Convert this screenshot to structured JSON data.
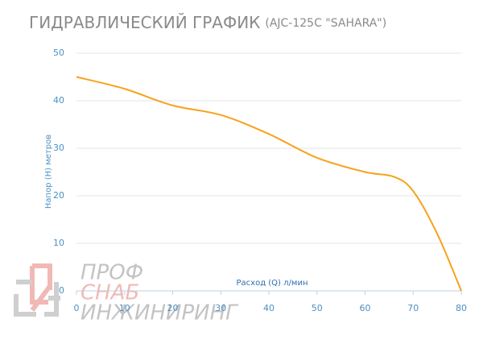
{
  "chart_data": {
    "type": "line",
    "title": "ГИДРАВЛИЧЕСКИЙ ГРАФИК",
    "subtitle": "(AJC-125C \"SAHARA\")",
    "x_label": "Расход (Q) л/мин",
    "y_label": "Напор (H) метров",
    "x": [
      0,
      10,
      20,
      30,
      40,
      50,
      60,
      66,
      70,
      75,
      80
    ],
    "series": [
      {
        "color": "#f7a21b",
        "values": [
          45,
          42.5,
          39,
          37,
          33,
          28,
          25,
          24,
          21,
          12,
          0
        ]
      }
    ],
    "xlim": [
      0,
      80
    ],
    "xticks": [
      0,
      10,
      20,
      30,
      40,
      50,
      60,
      70,
      80
    ],
    "ylim": [
      0,
      50
    ],
    "yticks": [
      0,
      10,
      20,
      30,
      40,
      50
    ],
    "grid": true
  },
  "watermark": {
    "line1": "ПРОФ",
    "line2": "СНАБ",
    "line3": "ИНЖИНИРИНГ"
  }
}
